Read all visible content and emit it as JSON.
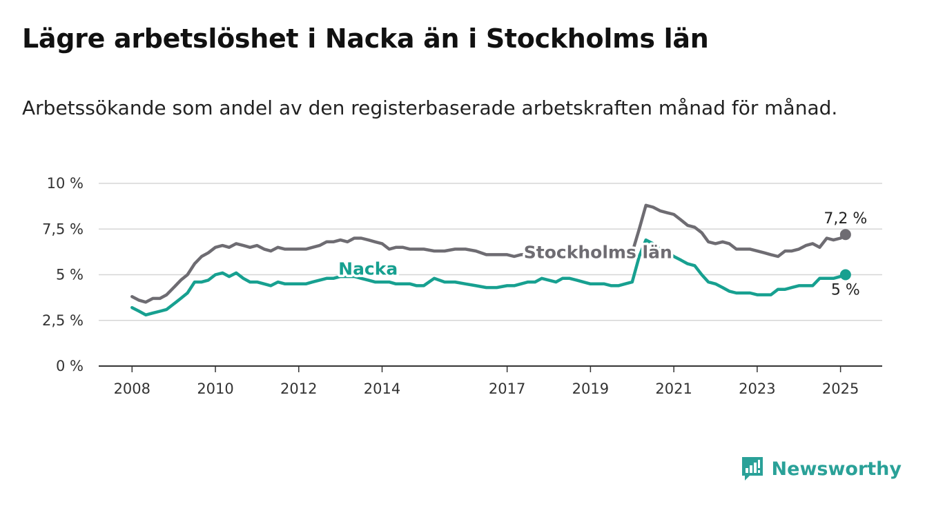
{
  "title": "Lägre arbetslöshet i Nacka än i Stockholms län",
  "subtitle": "Arbetssökande som andel av den registerbaserade arbetskraften månad för månad.",
  "brand": {
    "name": "Newsworthy",
    "color": "#2aa198"
  },
  "chart_data": {
    "type": "line",
    "grid": true,
    "x_ticks": [
      2008,
      2010,
      2012,
      2014,
      2017,
      2019,
      2021,
      2023,
      2025
    ],
    "x_range": [
      2007.2,
      2026.0
    ],
    "y_ticks": [
      0,
      2.5,
      5,
      7.5,
      10
    ],
    "y_tick_labels": [
      "0 %",
      "2,5 %",
      "5 %",
      "7,5 %",
      "10 %"
    ],
    "ylim": [
      0,
      10
    ],
    "series": [
      {
        "name": "Stockholms län",
        "color": "#6e6c72",
        "end_label": "7,2 %",
        "x": [
          2008.0,
          2008.17,
          2008.33,
          2008.5,
          2008.67,
          2008.83,
          2009.0,
          2009.17,
          2009.33,
          2009.5,
          2009.67,
          2009.83,
          2010.0,
          2010.17,
          2010.33,
          2010.5,
          2010.67,
          2010.83,
          2011.0,
          2011.17,
          2011.33,
          2011.5,
          2011.67,
          2011.83,
          2012.0,
          2012.17,
          2012.33,
          2012.5,
          2012.67,
          2012.83,
          2013.0,
          2013.17,
          2013.33,
          2013.5,
          2013.67,
          2013.83,
          2014.0,
          2014.17,
          2014.33,
          2014.5,
          2014.67,
          2014.83,
          2015.0,
          2015.25,
          2015.5,
          2015.75,
          2016.0,
          2016.25,
          2016.5,
          2016.75,
          2017.0,
          2017.17,
          2017.33,
          2017.5,
          2017.67,
          2017.83,
          2018.0,
          2018.17,
          2018.33,
          2018.5,
          2018.67,
          2018.83,
          2019.0,
          2019.17,
          2019.33,
          2019.5,
          2019.67,
          2019.83,
          2020.0,
          2020.17,
          2020.33,
          2020.5,
          2020.67,
          2020.83,
          2021.0,
          2021.17,
          2021.33,
          2021.5,
          2021.67,
          2021.83,
          2022.0,
          2022.17,
          2022.33,
          2022.5,
          2022.67,
          2022.83,
          2023.0,
          2023.17,
          2023.33,
          2023.5,
          2023.67,
          2023.83,
          2024.0,
          2024.17,
          2024.33,
          2024.5,
          2024.67,
          2024.83,
          2025.0,
          2025.12
        ],
        "values": [
          3.8,
          3.6,
          3.5,
          3.7,
          3.7,
          3.9,
          4.3,
          4.7,
          5.0,
          5.6,
          6.0,
          6.2,
          6.5,
          6.6,
          6.5,
          6.7,
          6.6,
          6.5,
          6.6,
          6.4,
          6.3,
          6.5,
          6.4,
          6.4,
          6.4,
          6.4,
          6.5,
          6.6,
          6.8,
          6.8,
          6.9,
          6.8,
          7.0,
          7.0,
          6.9,
          6.8,
          6.7,
          6.4,
          6.5,
          6.5,
          6.4,
          6.4,
          6.4,
          6.3,
          6.3,
          6.4,
          6.4,
          6.3,
          6.1,
          6.1,
          6.1,
          6.0,
          6.1,
          6.1,
          6.0,
          6.1,
          6.1,
          6.1,
          6.0,
          6.1,
          6.1,
          6.0,
          6.1,
          6.1,
          6.0,
          6.1,
          6.2,
          6.1,
          6.2,
          7.5,
          8.8,
          8.7,
          8.5,
          8.4,
          8.3,
          8.0,
          7.7,
          7.6,
          7.3,
          6.8,
          6.7,
          6.8,
          6.7,
          6.4,
          6.4,
          6.4,
          6.3,
          6.2,
          6.1,
          6.0,
          6.3,
          6.3,
          6.4,
          6.6,
          6.7,
          6.5,
          7.0,
          6.9,
          7.0,
          7.2
        ]
      },
      {
        "name": "Nacka",
        "color": "#17a090",
        "end_label": "5 %",
        "x": [
          2008.0,
          2008.17,
          2008.33,
          2008.5,
          2008.67,
          2008.83,
          2009.0,
          2009.17,
          2009.33,
          2009.5,
          2009.67,
          2009.83,
          2010.0,
          2010.17,
          2010.33,
          2010.5,
          2010.67,
          2010.83,
          2011.0,
          2011.17,
          2011.33,
          2011.5,
          2011.67,
          2011.83,
          2012.0,
          2012.17,
          2012.33,
          2012.5,
          2012.67,
          2012.83,
          2013.0,
          2013.17,
          2013.33,
          2013.5,
          2013.67,
          2013.83,
          2014.0,
          2014.17,
          2014.33,
          2014.5,
          2014.67,
          2014.83,
          2015.0,
          2015.25,
          2015.5,
          2015.75,
          2016.0,
          2016.25,
          2016.5,
          2016.75,
          2017.0,
          2017.17,
          2017.33,
          2017.5,
          2017.67,
          2017.83,
          2018.0,
          2018.17,
          2018.33,
          2018.5,
          2018.67,
          2018.83,
          2019.0,
          2019.17,
          2019.33,
          2019.5,
          2019.67,
          2019.83,
          2020.0,
          2020.17,
          2020.33,
          2020.5,
          2020.67,
          2020.83,
          2021.0,
          2021.17,
          2021.33,
          2021.5,
          2021.67,
          2021.83,
          2022.0,
          2022.17,
          2022.33,
          2022.5,
          2022.67,
          2022.83,
          2023.0,
          2023.17,
          2023.33,
          2023.5,
          2023.67,
          2023.83,
          2024.0,
          2024.17,
          2024.33,
          2024.5,
          2024.67,
          2024.83,
          2025.0,
          2025.12
        ],
        "values": [
          3.2,
          3.0,
          2.8,
          2.9,
          3.0,
          3.1,
          3.4,
          3.7,
          4.0,
          4.6,
          4.6,
          4.7,
          5.0,
          5.1,
          4.9,
          5.1,
          4.8,
          4.6,
          4.6,
          4.5,
          4.4,
          4.6,
          4.5,
          4.5,
          4.5,
          4.5,
          4.6,
          4.7,
          4.8,
          4.8,
          4.9,
          4.9,
          4.9,
          4.8,
          4.7,
          4.6,
          4.6,
          4.6,
          4.5,
          4.5,
          4.5,
          4.4,
          4.4,
          4.8,
          4.6,
          4.6,
          4.5,
          4.4,
          4.3,
          4.3,
          4.4,
          4.4,
          4.5,
          4.6,
          4.6,
          4.8,
          4.7,
          4.6,
          4.8,
          4.8,
          4.7,
          4.6,
          4.5,
          4.5,
          4.5,
          4.4,
          4.4,
          4.5,
          4.6,
          6.0,
          6.9,
          6.7,
          6.4,
          6.3,
          6.0,
          5.8,
          5.6,
          5.5,
          5.0,
          4.6,
          4.5,
          4.3,
          4.1,
          4.0,
          4.0,
          4.0,
          3.9,
          3.9,
          3.9,
          4.2,
          4.2,
          4.3,
          4.4,
          4.4,
          4.4,
          4.8,
          4.8,
          4.8,
          4.9,
          5.0
        ]
      }
    ]
  }
}
